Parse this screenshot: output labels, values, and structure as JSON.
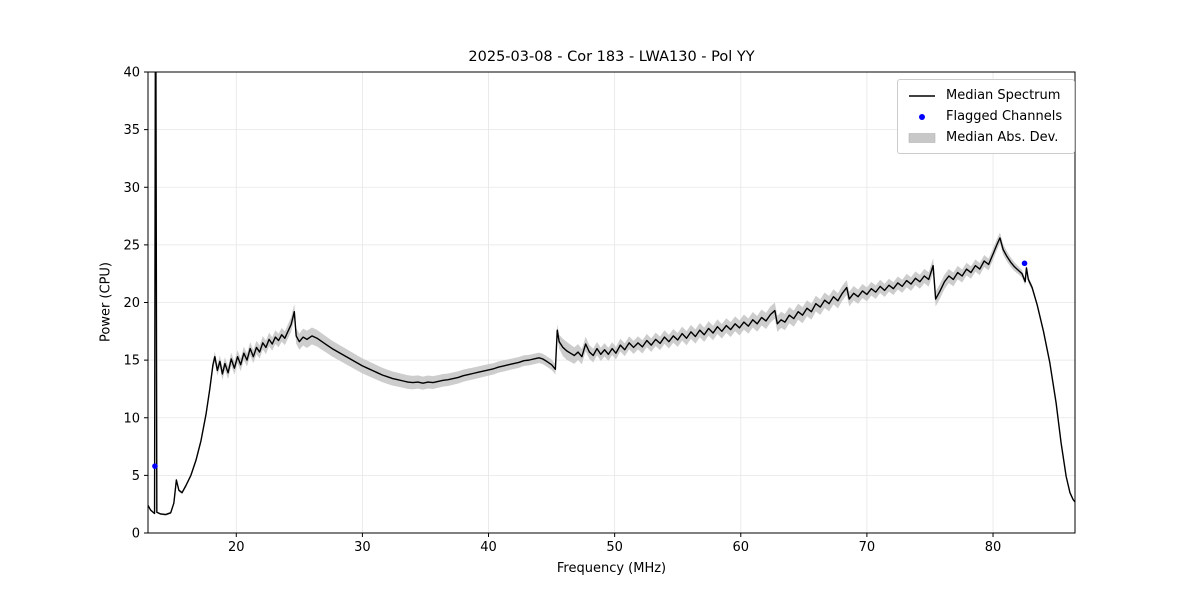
{
  "chart_data": {
    "type": "line",
    "title": "2025-03-08 - Cor 183 - LWA130 - Pol YY",
    "xlabel": "Frequency (MHz)",
    "ylabel": "Power (CPU)",
    "xlim": [
      13,
      86.5
    ],
    "ylim": [
      0,
      40
    ],
    "xticks": [
      20,
      30,
      40,
      50,
      60,
      70,
      80
    ],
    "yticks": [
      0,
      5,
      10,
      15,
      20,
      25,
      30,
      35,
      40
    ],
    "grid": true,
    "legend_position": "upper right",
    "colors": {
      "line": "#000000",
      "flagged": "#0000ff",
      "band": "#c8c8c8",
      "grid": "#e6e6e6",
      "spine": "#000000"
    },
    "series": [
      {
        "name": "Median Spectrum",
        "type": "line",
        "color": "#000000",
        "points": [
          [
            13.0,
            2.4
          ],
          [
            13.2,
            2.0
          ],
          [
            13.4,
            1.8
          ],
          [
            13.52,
            1.7
          ],
          [
            13.58,
            40
          ],
          [
            13.63,
            40
          ],
          [
            13.7,
            1.8
          ],
          [
            14.0,
            1.65
          ],
          [
            14.4,
            1.6
          ],
          [
            14.8,
            1.75
          ],
          [
            15.05,
            2.6
          ],
          [
            15.25,
            4.6
          ],
          [
            15.45,
            3.7
          ],
          [
            15.7,
            3.5
          ],
          [
            16.0,
            4.1
          ],
          [
            16.4,
            5.0
          ],
          [
            16.8,
            6.3
          ],
          [
            17.2,
            8.0
          ],
          [
            17.6,
            10.3
          ],
          [
            17.9,
            12.5
          ],
          [
            18.15,
            14.6
          ],
          [
            18.3,
            15.3
          ],
          [
            18.5,
            14.1
          ],
          [
            18.7,
            14.9
          ],
          [
            18.9,
            13.8
          ],
          [
            19.1,
            14.7
          ],
          [
            19.35,
            13.9
          ],
          [
            19.6,
            15.1
          ],
          [
            19.85,
            14.3
          ],
          [
            20.1,
            15.3
          ],
          [
            20.35,
            14.6
          ],
          [
            20.6,
            15.6
          ],
          [
            20.85,
            15.0
          ],
          [
            21.1,
            16.0
          ],
          [
            21.35,
            15.3
          ],
          [
            21.6,
            16.1
          ],
          [
            21.85,
            15.7
          ],
          [
            22.1,
            16.5
          ],
          [
            22.35,
            16.1
          ],
          [
            22.6,
            16.8
          ],
          [
            22.85,
            16.4
          ],
          [
            23.1,
            17.0
          ],
          [
            23.35,
            16.7
          ],
          [
            23.6,
            17.2
          ],
          [
            23.85,
            16.9
          ],
          [
            24.1,
            17.5
          ],
          [
            24.35,
            18.1
          ],
          [
            24.6,
            19.2
          ],
          [
            24.75,
            17.1
          ],
          [
            25.0,
            16.6
          ],
          [
            25.3,
            17.0
          ],
          [
            25.6,
            16.8
          ],
          [
            26.0,
            17.1
          ],
          [
            26.4,
            16.9
          ],
          [
            26.8,
            16.6
          ],
          [
            27.2,
            16.3
          ],
          [
            27.6,
            16.0
          ],
          [
            28.0,
            15.75
          ],
          [
            28.4,
            15.5
          ],
          [
            28.8,
            15.25
          ],
          [
            29.2,
            15.0
          ],
          [
            29.6,
            14.75
          ],
          [
            30.0,
            14.5
          ],
          [
            30.4,
            14.3
          ],
          [
            30.8,
            14.1
          ],
          [
            31.2,
            13.9
          ],
          [
            31.6,
            13.7
          ],
          [
            32.0,
            13.55
          ],
          [
            32.4,
            13.4
          ],
          [
            32.8,
            13.3
          ],
          [
            33.2,
            13.2
          ],
          [
            33.6,
            13.1
          ],
          [
            34.0,
            13.05
          ],
          [
            34.4,
            13.1
          ],
          [
            34.8,
            13.0
          ],
          [
            35.2,
            13.1
          ],
          [
            35.6,
            13.05
          ],
          [
            36.0,
            13.15
          ],
          [
            36.4,
            13.25
          ],
          [
            36.8,
            13.3
          ],
          [
            37.2,
            13.4
          ],
          [
            37.6,
            13.5
          ],
          [
            38.0,
            13.65
          ],
          [
            38.4,
            13.75
          ],
          [
            38.8,
            13.85
          ],
          [
            39.2,
            13.95
          ],
          [
            39.6,
            14.05
          ],
          [
            40.0,
            14.15
          ],
          [
            40.4,
            14.25
          ],
          [
            40.8,
            14.4
          ],
          [
            41.2,
            14.5
          ],
          [
            41.6,
            14.6
          ],
          [
            42.0,
            14.7
          ],
          [
            42.4,
            14.8
          ],
          [
            42.8,
            14.95
          ],
          [
            43.2,
            15.0
          ],
          [
            43.6,
            15.1
          ],
          [
            44.0,
            15.2
          ],
          [
            44.3,
            15.1
          ],
          [
            44.6,
            14.9
          ],
          [
            45.0,
            14.6
          ],
          [
            45.3,
            14.2
          ],
          [
            45.45,
            17.6
          ],
          [
            45.6,
            16.6
          ],
          [
            45.9,
            16.1
          ],
          [
            46.2,
            15.8
          ],
          [
            46.5,
            15.6
          ],
          [
            46.8,
            15.4
          ],
          [
            47.1,
            15.7
          ],
          [
            47.4,
            15.3
          ],
          [
            47.7,
            16.4
          ],
          [
            48.0,
            15.7
          ],
          [
            48.3,
            15.4
          ],
          [
            48.6,
            16.0
          ],
          [
            48.9,
            15.5
          ],
          [
            49.2,
            15.9
          ],
          [
            49.5,
            15.5
          ],
          [
            49.8,
            16.0
          ],
          [
            50.1,
            15.6
          ],
          [
            50.45,
            16.3
          ],
          [
            50.8,
            15.9
          ],
          [
            51.15,
            16.5
          ],
          [
            51.5,
            16.1
          ],
          [
            51.85,
            16.5
          ],
          [
            52.2,
            16.15
          ],
          [
            52.55,
            16.7
          ],
          [
            52.9,
            16.3
          ],
          [
            53.25,
            16.8
          ],
          [
            53.6,
            16.45
          ],
          [
            53.95,
            17.0
          ],
          [
            54.3,
            16.6
          ],
          [
            54.65,
            17.1
          ],
          [
            55.0,
            16.75
          ],
          [
            55.35,
            17.3
          ],
          [
            55.7,
            16.9
          ],
          [
            56.05,
            17.45
          ],
          [
            56.4,
            17.05
          ],
          [
            56.75,
            17.6
          ],
          [
            57.1,
            17.2
          ],
          [
            57.45,
            17.75
          ],
          [
            57.8,
            17.35
          ],
          [
            58.15,
            17.9
          ],
          [
            58.5,
            17.5
          ],
          [
            58.85,
            18.0
          ],
          [
            59.2,
            17.65
          ],
          [
            59.55,
            18.15
          ],
          [
            59.9,
            17.8
          ],
          [
            60.25,
            18.3
          ],
          [
            60.6,
            17.95
          ],
          [
            60.95,
            18.5
          ],
          [
            61.3,
            18.15
          ],
          [
            61.65,
            18.7
          ],
          [
            62.0,
            18.4
          ],
          [
            62.35,
            18.95
          ],
          [
            62.7,
            19.3
          ],
          [
            62.9,
            18.15
          ],
          [
            63.2,
            18.5
          ],
          [
            63.5,
            18.3
          ],
          [
            63.85,
            18.9
          ],
          [
            64.2,
            18.6
          ],
          [
            64.55,
            19.2
          ],
          [
            64.9,
            18.9
          ],
          [
            65.25,
            19.5
          ],
          [
            65.6,
            19.2
          ],
          [
            65.95,
            19.9
          ],
          [
            66.3,
            19.6
          ],
          [
            66.65,
            20.2
          ],
          [
            67.0,
            19.9
          ],
          [
            67.35,
            20.5
          ],
          [
            67.7,
            20.15
          ],
          [
            68.05,
            20.8
          ],
          [
            68.4,
            21.3
          ],
          [
            68.6,
            20.3
          ],
          [
            68.95,
            20.8
          ],
          [
            69.3,
            20.5
          ],
          [
            69.65,
            21.0
          ],
          [
            70.0,
            20.7
          ],
          [
            70.35,
            21.2
          ],
          [
            70.7,
            20.9
          ],
          [
            71.05,
            21.4
          ],
          [
            71.4,
            21.05
          ],
          [
            71.75,
            21.5
          ],
          [
            72.1,
            21.2
          ],
          [
            72.45,
            21.7
          ],
          [
            72.8,
            21.4
          ],
          [
            73.15,
            21.9
          ],
          [
            73.5,
            21.6
          ],
          [
            73.85,
            22.1
          ],
          [
            74.2,
            21.8
          ],
          [
            74.55,
            22.3
          ],
          [
            74.9,
            22.0
          ],
          [
            75.25,
            23.2
          ],
          [
            75.45,
            20.3
          ],
          [
            75.8,
            21.0
          ],
          [
            76.15,
            21.8
          ],
          [
            76.5,
            22.3
          ],
          [
            76.85,
            22.0
          ],
          [
            77.2,
            22.6
          ],
          [
            77.55,
            22.3
          ],
          [
            77.9,
            22.9
          ],
          [
            78.25,
            22.6
          ],
          [
            78.6,
            23.2
          ],
          [
            78.95,
            22.9
          ],
          [
            79.3,
            23.6
          ],
          [
            79.65,
            23.3
          ],
          [
            80.0,
            24.2
          ],
          [
            80.3,
            25.0
          ],
          [
            80.55,
            25.6
          ],
          [
            80.8,
            24.6
          ],
          [
            81.1,
            24.0
          ],
          [
            81.4,
            23.5
          ],
          [
            81.7,
            23.1
          ],
          [
            82.0,
            22.8
          ],
          [
            82.3,
            22.5
          ],
          [
            82.55,
            21.8
          ],
          [
            82.65,
            23.0
          ],
          [
            82.8,
            22.0
          ],
          [
            83.1,
            21.3
          ],
          [
            83.5,
            19.8
          ],
          [
            84.0,
            17.5
          ],
          [
            84.5,
            14.8
          ],
          [
            85.0,
            11.3
          ],
          [
            85.4,
            7.8
          ],
          [
            85.8,
            4.9
          ],
          [
            86.1,
            3.5
          ],
          [
            86.35,
            2.9
          ],
          [
            86.5,
            2.7
          ]
        ]
      },
      {
        "name": "Flagged Channels",
        "type": "scatter",
        "color": "#0000ff",
        "points": [
          [
            13.55,
            5.8
          ],
          [
            82.5,
            23.4
          ]
        ]
      },
      {
        "name": "Median Abs. Dev.",
        "type": "band",
        "color": "#c8c8c8",
        "halfwidth_control_points": [
          [
            13,
            0.05
          ],
          [
            15.5,
            0.12
          ],
          [
            17,
            0.2
          ],
          [
            18.3,
            0.45
          ],
          [
            19,
            0.55
          ],
          [
            24,
            0.6
          ],
          [
            25.5,
            0.75
          ],
          [
            27,
            0.7
          ],
          [
            30,
            0.65
          ],
          [
            33,
            0.6
          ],
          [
            36,
            0.55
          ],
          [
            40,
            0.5
          ],
          [
            44,
            0.45
          ],
          [
            45.3,
            0.45
          ],
          [
            46,
            0.8
          ],
          [
            48,
            0.6
          ],
          [
            50,
            0.55
          ],
          [
            55,
            0.6
          ],
          [
            60,
            0.65
          ],
          [
            62,
            0.7
          ],
          [
            65,
            0.7
          ],
          [
            68,
            0.65
          ],
          [
            70,
            0.6
          ],
          [
            72,
            0.55
          ],
          [
            74,
            0.6
          ],
          [
            75.5,
            0.65
          ],
          [
            78,
            0.55
          ],
          [
            80,
            0.5
          ],
          [
            81,
            0.45
          ],
          [
            82,
            0.35
          ],
          [
            83,
            0.25
          ],
          [
            84,
            0.15
          ],
          [
            86.5,
            0.05
          ]
        ]
      }
    ]
  }
}
